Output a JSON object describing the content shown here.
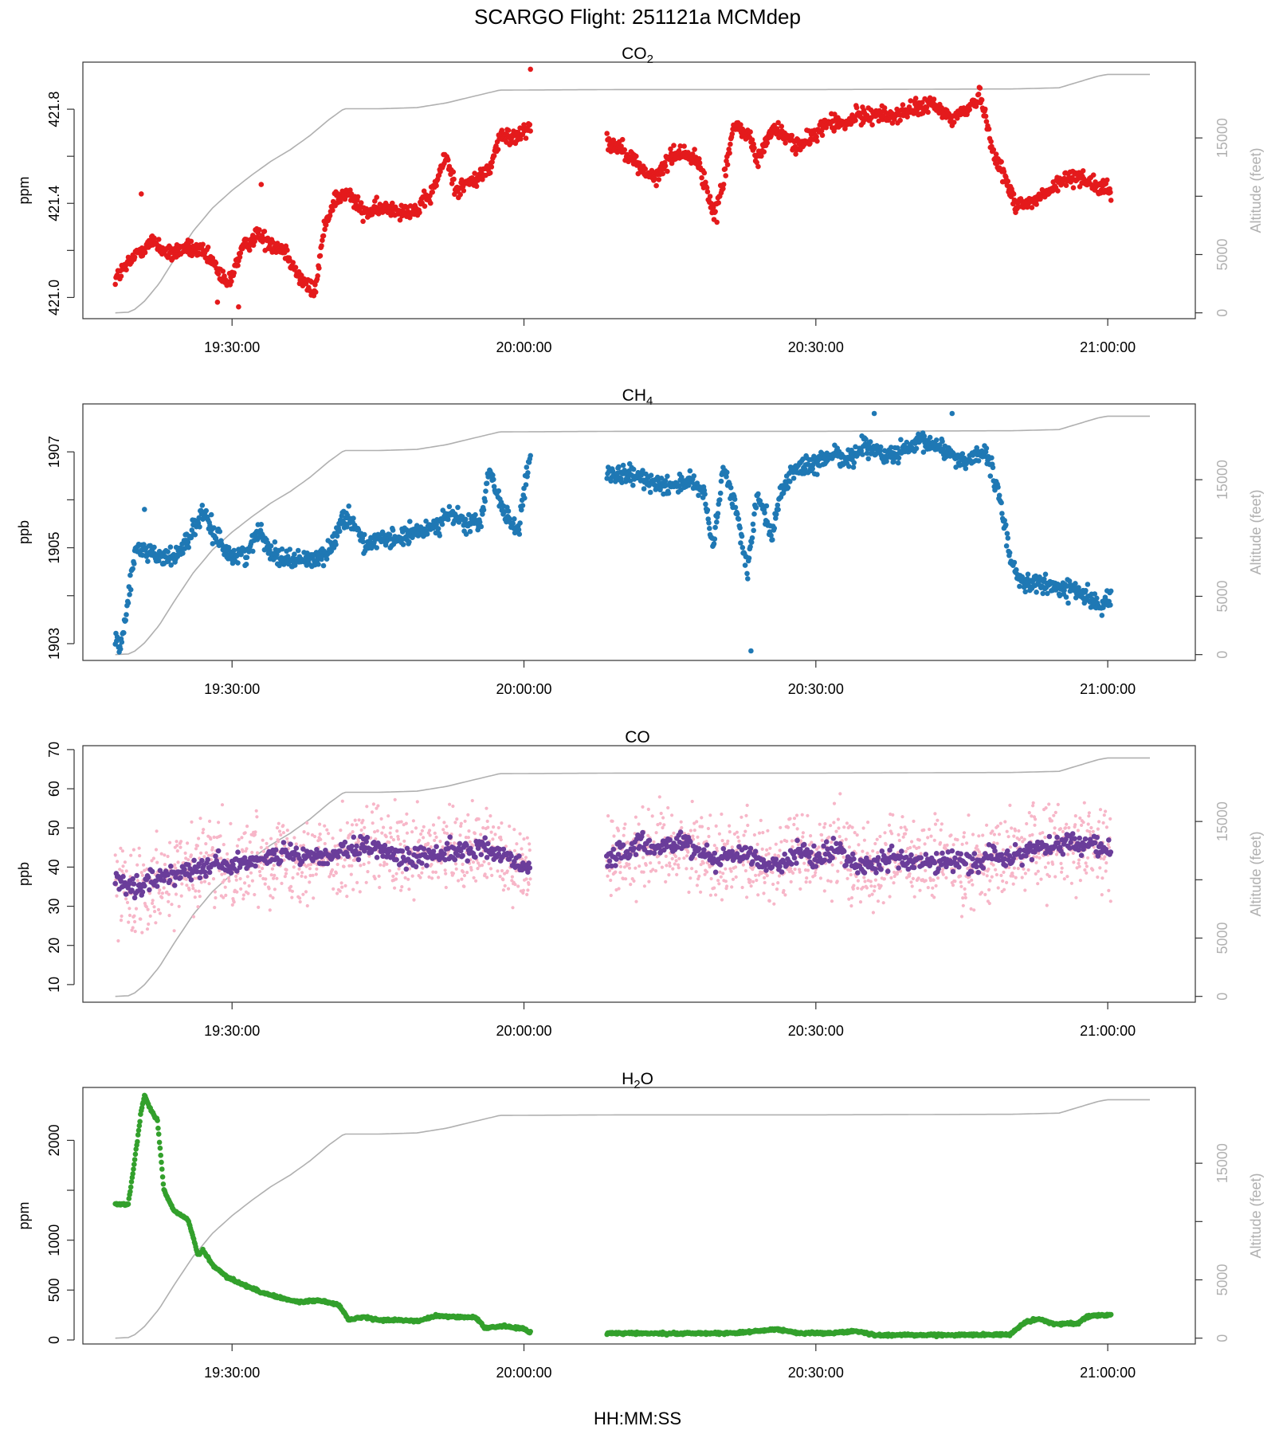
{
  "figure": {
    "title": "SCARGO Flight: 251121a  MCMdep",
    "xlabel": "HH:MM:SS"
  },
  "colors": {
    "co2": "#e41a1c",
    "ch4": "#1f78b4",
    "co_raw": "#f7b6c8",
    "co_avg": "#6a3d9a",
    "h2o": "#33a02c",
    "altitude": "#b0b0b0"
  },
  "chart_data": [
    {
      "type": "scatter",
      "title": "CO2",
      "title_main": "CO",
      "title_sub": "2",
      "ylabel": "ppm",
      "y2label": "Altitude (feet)",
      "xlim": [
        "19:14:40",
        "21:09:00"
      ],
      "ylim": [
        420.91,
        422.0
      ],
      "y2lim": [
        -500,
        21500
      ],
      "yticks": [
        "421.0",
        "421.4",
        "421.8"
      ],
      "yticks_minor": [
        421.2,
        421.6
      ],
      "y2ticks": [
        "0",
        "5000",
        "15000"
      ],
      "y2ticks_minor": [
        10000
      ],
      "xticks": [
        "19:30:00",
        "20:00:00",
        "20:30:00",
        "21:00:00"
      ],
      "color": "co2",
      "gap": [
        "20:00:40",
        "20:08:30"
      ],
      "series_anchors": [
        [
          "19:18:00",
          421.08
        ],
        [
          "19:19:30",
          421.15
        ],
        [
          "19:20:30",
          421.2
        ],
        [
          "19:22:00",
          421.24
        ],
        [
          "19:23:30",
          421.18
        ],
        [
          "19:25:00",
          421.21
        ],
        [
          "19:26:30",
          421.2
        ],
        [
          "19:28:00",
          421.15
        ],
        [
          "19:29:30",
          421.05
        ],
        [
          "19:31:00",
          421.2
        ],
        [
          "19:32:30",
          421.27
        ],
        [
          "19:34:00",
          421.23
        ],
        [
          "19:35:30",
          421.2
        ],
        [
          "19:37:00",
          421.08
        ],
        [
          "19:38:30",
          421.02
        ],
        [
          "19:39:30",
          421.3
        ],
        [
          "19:40:30",
          421.42
        ],
        [
          "19:42:00",
          421.44
        ],
        [
          "19:43:30",
          421.36
        ],
        [
          "19:46:00",
          421.38
        ],
        [
          "19:49:00",
          421.37
        ],
        [
          "19:50:30",
          421.44
        ],
        [
          "19:52:00",
          421.6
        ],
        [
          "19:53:00",
          421.46
        ],
        [
          "19:55:00",
          421.5
        ],
        [
          "19:56:30",
          421.55
        ],
        [
          "19:57:30",
          421.68
        ],
        [
          "19:59:00",
          421.68
        ],
        [
          "20:00:30",
          421.73
        ],
        [
          "20:08:30",
          421.66
        ],
        [
          "20:10:00",
          421.64
        ],
        [
          "20:12:00",
          421.55
        ],
        [
          "20:13:30",
          421.5
        ],
        [
          "20:15:00",
          421.6
        ],
        [
          "20:16:30",
          421.62
        ],
        [
          "20:18:00",
          421.57
        ],
        [
          "20:19:30",
          421.35
        ],
        [
          "20:20:30",
          421.5
        ],
        [
          "20:21:30",
          421.72
        ],
        [
          "20:23:00",
          421.7
        ],
        [
          "20:24:00",
          421.58
        ],
        [
          "20:25:30",
          421.72
        ],
        [
          "20:27:00",
          421.68
        ],
        [
          "20:28:30",
          421.64
        ],
        [
          "20:30:00",
          421.7
        ],
        [
          "20:31:30",
          421.75
        ],
        [
          "20:33:00",
          421.73
        ],
        [
          "20:34:00",
          421.77
        ],
        [
          "20:36:00",
          421.78
        ],
        [
          "20:38:00",
          421.77
        ],
        [
          "20:40:00",
          421.8
        ],
        [
          "20:42:00",
          421.82
        ],
        [
          "20:44:00",
          421.76
        ],
        [
          "20:45:30",
          421.8
        ],
        [
          "20:47:00",
          421.86
        ],
        [
          "20:48:00",
          421.65
        ],
        [
          "20:49:30",
          421.5
        ],
        [
          "20:50:30",
          421.4
        ],
        [
          "20:52:00",
          421.4
        ],
        [
          "20:54:00",
          421.45
        ],
        [
          "20:55:30",
          421.5
        ],
        [
          "20:57:00",
          421.52
        ],
        [
          "20:59:00",
          421.47
        ],
        [
          "21:00:20",
          421.45
        ]
      ],
      "noise": 0.025,
      "outliers": [
        [
          "20:00:40",
          421.97
        ],
        [
          "19:30:40",
          420.96
        ],
        [
          "19:28:30",
          420.98
        ],
        [
          "20:19:50",
          421.32
        ],
        [
          "19:20:40",
          421.44
        ],
        [
          "19:33:00",
          421.48
        ]
      ]
    },
    {
      "type": "scatter",
      "title": "CH4",
      "title_main": "CH",
      "title_sub": "4",
      "ylabel": "ppb",
      "y2label": "Altitude (feet)",
      "xlim": [
        "19:14:40",
        "21:09:00"
      ],
      "ylim": [
        1902.65,
        1908.0
      ],
      "y2lim": [
        -500,
        21500
      ],
      "yticks": [
        "1903",
        "1905",
        "1907"
      ],
      "yticks_minor": [
        1904,
        1906
      ],
      "y2ticks": [
        "0",
        "5000",
        "15000"
      ],
      "y2ticks_minor": [
        10000
      ],
      "xticks": [
        "19:30:00",
        "20:00:00",
        "20:30:00",
        "21:00:00"
      ],
      "color": "ch4",
      "gap": [
        "20:00:40",
        "20:08:30"
      ],
      "series_anchors": [
        [
          "19:18:00",
          1903.0
        ],
        [
          "19:18:40",
          1903.0
        ],
        [
          "19:20:00",
          1904.9
        ],
        [
          "19:21:00",
          1905.0
        ],
        [
          "19:22:30",
          1904.8
        ],
        [
          "19:24:00",
          1904.8
        ],
        [
          "19:25:30",
          1905.2
        ],
        [
          "19:27:00",
          1905.7
        ],
        [
          "19:28:30",
          1905.2
        ],
        [
          "19:30:00",
          1904.8
        ],
        [
          "19:31:30",
          1904.9
        ],
        [
          "19:33:00",
          1905.4
        ],
        [
          "19:34:00",
          1904.9
        ],
        [
          "19:36:00",
          1904.75
        ],
        [
          "19:38:00",
          1904.75
        ],
        [
          "19:40:00",
          1904.9
        ],
        [
          "19:41:00",
          1905.5
        ],
        [
          "19:42:00",
          1905.7
        ],
        [
          "19:43:30",
          1905.1
        ],
        [
          "19:46:00",
          1905.15
        ],
        [
          "19:49:00",
          1905.3
        ],
        [
          "19:51:00",
          1905.5
        ],
        [
          "19:52:30",
          1905.7
        ],
        [
          "19:54:00",
          1905.5
        ],
        [
          "19:55:30",
          1905.5
        ],
        [
          "19:56:30",
          1906.6
        ],
        [
          "19:58:00",
          1905.7
        ],
        [
          "19:59:30",
          1905.4
        ],
        [
          "20:00:30",
          1906.8
        ],
        [
          "20:08:30",
          1906.5
        ],
        [
          "20:11:00",
          1906.5
        ],
        [
          "20:13:00",
          1906.4
        ],
        [
          "20:15:00",
          1906.3
        ],
        [
          "20:17:00",
          1906.4
        ],
        [
          "20:18:30",
          1906.1
        ],
        [
          "20:19:30",
          1905.0
        ],
        [
          "20:20:30",
          1906.7
        ],
        [
          "20:22:00",
          1905.6
        ],
        [
          "20:23:00",
          1904.5
        ],
        [
          "20:24:00",
          1906.2
        ],
        [
          "20:25:30",
          1905.3
        ],
        [
          "20:26:30",
          1906.2
        ],
        [
          "20:28:00",
          1906.7
        ],
        [
          "20:30:00",
          1906.7
        ],
        [
          "20:32:00",
          1907.0
        ],
        [
          "20:33:30",
          1906.8
        ],
        [
          "20:35:00",
          1907.2
        ],
        [
          "20:37:00",
          1906.9
        ],
        [
          "20:39:00",
          1907.0
        ],
        [
          "20:41:00",
          1907.2
        ],
        [
          "20:43:00",
          1907.1
        ],
        [
          "20:45:00",
          1906.8
        ],
        [
          "20:47:00",
          1907.0
        ],
        [
          "20:48:00",
          1906.7
        ],
        [
          "20:49:00",
          1905.9
        ],
        [
          "20:50:00",
          1904.8
        ],
        [
          "20:51:00",
          1904.3
        ],
        [
          "20:54:00",
          1904.2
        ],
        [
          "20:57:00",
          1904.1
        ],
        [
          "20:59:00",
          1903.8
        ],
        [
          "21:00:20",
          1903.9
        ]
      ],
      "noise": 0.14,
      "outliers": [
        [
          "20:23:20",
          1902.85
        ],
        [
          "19:18:20",
          1903.1
        ],
        [
          "20:36:00",
          1907.8
        ],
        [
          "20:44:00",
          1907.8
        ],
        [
          "19:21:00",
          1905.8
        ]
      ]
    },
    {
      "type": "scatter",
      "title": "CO",
      "title_main": "CO",
      "title_sub": "",
      "ylabel": "ppb",
      "y2label": "Altitude (feet)",
      "xlim": [
        "19:14:40",
        "21:09:00"
      ],
      "ylim": [
        5.5,
        71.0
      ],
      "y2lim": [
        -500,
        21500
      ],
      "yticks": [
        "10",
        "20",
        "30",
        "40",
        "50",
        "60",
        "70"
      ],
      "yticks_minor": [],
      "y2ticks": [
        "0",
        "5000",
        "15000"
      ],
      "y2ticks_minor": [
        10000
      ],
      "xticks": [
        "19:30:00",
        "20:00:00",
        "20:30:00",
        "21:00:00"
      ],
      "color": "co_avg",
      "raw_color": "co_raw",
      "gap": [
        "20:00:40",
        "20:08:30"
      ],
      "series_anchors": [
        [
          "19:18:00",
          37
        ],
        [
          "19:20:00",
          34
        ],
        [
          "19:22:00",
          37
        ],
        [
          "19:24:00",
          38
        ],
        [
          "19:26:00",
          40
        ],
        [
          "19:28:00",
          41
        ],
        [
          "19:30:00",
          40
        ],
        [
          "19:32:00",
          42
        ],
        [
          "19:34:00",
          43
        ],
        [
          "19:36:00",
          43
        ],
        [
          "19:38:00",
          42
        ],
        [
          "19:40:00",
          43
        ],
        [
          "19:42:00",
          44
        ],
        [
          "19:44:00",
          45
        ],
        [
          "19:46:00",
          44
        ],
        [
          "19:48:00",
          42
        ],
        [
          "19:50:00",
          43
        ],
        [
          "19:52:00",
          44
        ],
        [
          "19:54:00",
          44
        ],
        [
          "19:56:00",
          45
        ],
        [
          "19:58:00",
          43
        ],
        [
          "20:00:30",
          40
        ],
        [
          "20:08:30",
          42
        ],
        [
          "20:10:00",
          43
        ],
        [
          "20:12:00",
          46
        ],
        [
          "20:14:00",
          45
        ],
        [
          "20:16:00",
          47
        ],
        [
          "20:18:00",
          44
        ],
        [
          "20:20:00",
          42
        ],
        [
          "20:22:00",
          44
        ],
        [
          "20:24:00",
          42
        ],
        [
          "20:26:00",
          40
        ],
        [
          "20:28:00",
          44
        ],
        [
          "20:30:00",
          42
        ],
        [
          "20:32:00",
          45
        ],
        [
          "20:34:00",
          41
        ],
        [
          "20:36:00",
          40
        ],
        [
          "20:38:00",
          43
        ],
        [
          "20:40:00",
          41
        ],
        [
          "20:42:00",
          41
        ],
        [
          "20:44:00",
          42
        ],
        [
          "20:46:00",
          41
        ],
        [
          "20:48:00",
          43
        ],
        [
          "20:50:00",
          42
        ],
        [
          "20:52:00",
          45
        ],
        [
          "20:54:00",
          45
        ],
        [
          "20:56:00",
          46
        ],
        [
          "20:58:00",
          46
        ],
        [
          "21:00:20",
          44
        ]
      ],
      "noise": 1.8,
      "raw_noise": 7.5,
      "outliers": []
    },
    {
      "type": "scatter",
      "title": "H2O",
      "title_main": "H",
      "title_sub": "2",
      "title_tail": "O",
      "ylabel": "ppm",
      "y2label": "Altitude (feet)",
      "xlim": [
        "19:14:40",
        "21:09:00"
      ],
      "ylim": [
        -40,
        2530
      ],
      "y2lim": [
        -500,
        21500
      ],
      "yticks": [
        "0",
        "500",
        "1000",
        "2000"
      ],
      "yticks_minor": [
        1500
      ],
      "y2ticks": [
        "0",
        "5000",
        "15000"
      ],
      "y2ticks_minor": [
        10000
      ],
      "xticks": [
        "19:30:00",
        "20:00:00",
        "20:30:00",
        "21:00:00"
      ],
      "color": "h2o",
      "gap": [
        "20:00:40",
        "20:08:30"
      ],
      "series_anchors": [
        [
          "19:18:00",
          1360
        ],
        [
          "19:19:20",
          1360
        ],
        [
          "19:20:00",
          1800
        ],
        [
          "19:20:40",
          2300
        ],
        [
          "19:21:00",
          2450
        ],
        [
          "19:21:40",
          2300
        ],
        [
          "19:22:20",
          2200
        ],
        [
          "19:23:00",
          1500
        ],
        [
          "19:24:00",
          1300
        ],
        [
          "19:25:30",
          1200
        ],
        [
          "19:26:30",
          850
        ],
        [
          "19:27:00",
          900
        ],
        [
          "19:28:00",
          750
        ],
        [
          "19:29:30",
          630
        ],
        [
          "19:31:00",
          560
        ],
        [
          "19:33:00",
          480
        ],
        [
          "19:35:00",
          420
        ],
        [
          "19:37:00",
          380
        ],
        [
          "19:39:00",
          400
        ],
        [
          "19:41:00",
          350
        ],
        [
          "19:42:00",
          200
        ],
        [
          "19:43:30",
          230
        ],
        [
          "19:45:00",
          200
        ],
        [
          "19:47:00",
          200
        ],
        [
          "19:49:00",
          190
        ],
        [
          "19:51:00",
          240
        ],
        [
          "19:53:00",
          230
        ],
        [
          "19:55:00",
          230
        ],
        [
          "19:56:00",
          120
        ],
        [
          "19:58:00",
          140
        ],
        [
          "20:00:00",
          110
        ],
        [
          "20:00:30",
          80
        ],
        [
          "20:08:30",
          70
        ],
        [
          "20:15:00",
          65
        ],
        [
          "20:22:00",
          70
        ],
        [
          "20:26:00",
          110
        ],
        [
          "20:28:00",
          70
        ],
        [
          "20:32:00",
          70
        ],
        [
          "20:34:00",
          90
        ],
        [
          "20:36:00",
          50
        ],
        [
          "20:44:00",
          50
        ],
        [
          "20:50:00",
          55
        ],
        [
          "20:51:30",
          180
        ],
        [
          "20:53:00",
          210
        ],
        [
          "20:54:30",
          160
        ],
        [
          "20:57:00",
          170
        ],
        [
          "20:58:00",
          240
        ],
        [
          "21:00:20",
          250
        ]
      ],
      "noise": 8,
      "outliers": []
    }
  ],
  "altitude_profile": [
    [
      "19:18:00",
      0
    ],
    [
      "19:19:20",
      50
    ],
    [
      "19:20:00",
      300
    ],
    [
      "19:21:00",
      1000
    ],
    [
      "19:22:30",
      2500
    ],
    [
      "19:24:00",
      4500
    ],
    [
      "19:26:00",
      7000
    ],
    [
      "19:28:00",
      9000
    ],
    [
      "19:30:00",
      10500
    ],
    [
      "19:32:00",
      11800
    ],
    [
      "19:34:00",
      13000
    ],
    [
      "19:36:00",
      14000
    ],
    [
      "19:38:00",
      15200
    ],
    [
      "19:40:00",
      16600
    ],
    [
      "19:41:30",
      17500
    ],
    [
      "19:45:00",
      17500
    ],
    [
      "19:49:00",
      17600
    ],
    [
      "19:52:00",
      18000
    ],
    [
      "19:55:00",
      18600
    ],
    [
      "19:57:30",
      19100
    ],
    [
      "20:10:00",
      19150
    ],
    [
      "20:30:00",
      19150
    ],
    [
      "20:50:00",
      19200
    ],
    [
      "20:55:00",
      19300
    ],
    [
      "20:57:00",
      19800
    ],
    [
      "20:59:00",
      20300
    ],
    [
      "21:00:00",
      20450
    ],
    [
      "21:04:30",
      20450
    ]
  ]
}
